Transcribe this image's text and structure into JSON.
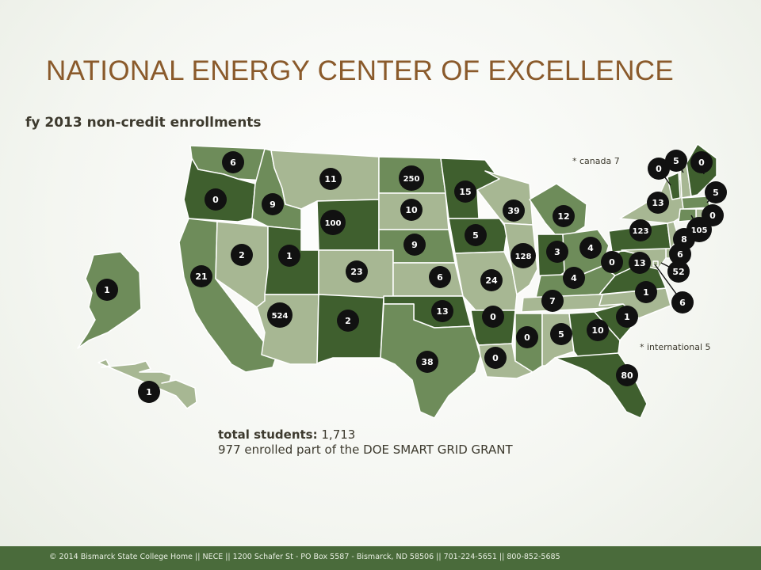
{
  "title": "NATIONAL ENERGY CENTER OF EXCELLENCE",
  "subtitle": "fy 2013 non-credit enrollments",
  "notes": {
    "canada": "* canada 7",
    "international": "* international 5"
  },
  "totals": {
    "label": "total students:",
    "value": "1,713",
    "grant_line": "977 enrolled part of the DOE SMART GRID GRANT"
  },
  "footer": "© 2014 Bismarck State College Home || NECE || 1200 Schafer St - PO Box 5587 - Bismarck, ND 58506 || 701-224-5651 || 800-852-5685",
  "colors": {
    "dark": "#3f5f2e",
    "medium": "#6e8c5a",
    "light": "#a7b793",
    "badge": "#111111"
  },
  "states": [
    {
      "code": "WA",
      "shade": "medium",
      "enrollment": "6"
    },
    {
      "code": "OR",
      "shade": "dark",
      "enrollment": "0"
    },
    {
      "code": "CA",
      "shade": "medium",
      "enrollment": "21"
    },
    {
      "code": "NV",
      "shade": "light",
      "enrollment": "2"
    },
    {
      "code": "ID",
      "shade": "medium",
      "enrollment": "9"
    },
    {
      "code": "MT",
      "shade": "light",
      "enrollment": "11"
    },
    {
      "code": "WY",
      "shade": "dark",
      "enrollment": "100"
    },
    {
      "code": "UT",
      "shade": "dark",
      "enrollment": "1"
    },
    {
      "code": "AZ",
      "shade": "light",
      "enrollment": "524"
    },
    {
      "code": "CO",
      "shade": "light",
      "enrollment": "23"
    },
    {
      "code": "NM",
      "shade": "dark",
      "enrollment": "2"
    },
    {
      "code": "ND",
      "shade": "medium",
      "enrollment": "250"
    },
    {
      "code": "SD",
      "shade": "light",
      "enrollment": "10"
    },
    {
      "code": "NE",
      "shade": "medium",
      "enrollment": "9"
    },
    {
      "code": "KS",
      "shade": "light",
      "enrollment": "6"
    },
    {
      "code": "OK",
      "shade": "dark",
      "enrollment": "13"
    },
    {
      "code": "TX",
      "shade": "medium",
      "enrollment": "38"
    },
    {
      "code": "MN",
      "shade": "dark",
      "enrollment": "15"
    },
    {
      "code": "IA",
      "shade": "dark",
      "enrollment": "5"
    },
    {
      "code": "MO",
      "shade": "light",
      "enrollment": "24"
    },
    {
      "code": "AR",
      "shade": "dark",
      "enrollment": "0"
    },
    {
      "code": "LA",
      "shade": "light",
      "enrollment": "0"
    },
    {
      "code": "WI",
      "shade": "light",
      "enrollment": "39"
    },
    {
      "code": "IL",
      "shade": "light",
      "enrollment": "128"
    },
    {
      "code": "MI",
      "shade": "medium",
      "enrollment": "12"
    },
    {
      "code": "IN",
      "shade": "dark",
      "enrollment": "3"
    },
    {
      "code": "OH",
      "shade": "medium",
      "enrollment": "4"
    },
    {
      "code": "KY",
      "shade": "medium",
      "enrollment": "4"
    },
    {
      "code": "TN",
      "shade": "light",
      "enrollment": "7"
    },
    {
      "code": "MS",
      "shade": "medium",
      "enrollment": "0"
    },
    {
      "code": "AL",
      "shade": "light",
      "enrollment": "5"
    },
    {
      "code": "GA",
      "shade": "dark",
      "enrollment": "10"
    },
    {
      "code": "FL",
      "shade": "dark",
      "enrollment": "80"
    },
    {
      "code": "SC",
      "shade": "dark",
      "enrollment": "1"
    },
    {
      "code": "NC",
      "shade": "light",
      "enrollment": "1"
    },
    {
      "code": "VA",
      "shade": "dark",
      "enrollment": "13"
    },
    {
      "code": "WV",
      "shade": "dark",
      "enrollment": "0"
    },
    {
      "code": "PA",
      "shade": "dark",
      "enrollment": "123"
    },
    {
      "code": "NY",
      "shade": "light",
      "enrollment": "13"
    },
    {
      "code": "VT",
      "shade": "dark",
      "enrollment": "0"
    },
    {
      "code": "NH",
      "shade": "light",
      "enrollment": "5"
    },
    {
      "code": "ME",
      "shade": "dark",
      "enrollment": "0"
    },
    {
      "code": "MA",
      "shade": "medium",
      "enrollment": "5"
    },
    {
      "code": "RI",
      "shade": "light",
      "enrollment": "0"
    },
    {
      "code": "CT",
      "shade": "medium",
      "enrollment": "105"
    },
    {
      "code": "NJ",
      "shade": "light",
      "enrollment": "8"
    },
    {
      "code": "DE",
      "shade": "light",
      "enrollment": "6"
    },
    {
      "code": "MD",
      "shade": "light",
      "enrollment": "52"
    },
    {
      "code": "DC",
      "shade": "light",
      "enrollment": "6"
    },
    {
      "code": "AK",
      "shade": "medium",
      "enrollment": "1"
    },
    {
      "code": "HI",
      "shade": "light",
      "enrollment": "1"
    }
  ]
}
